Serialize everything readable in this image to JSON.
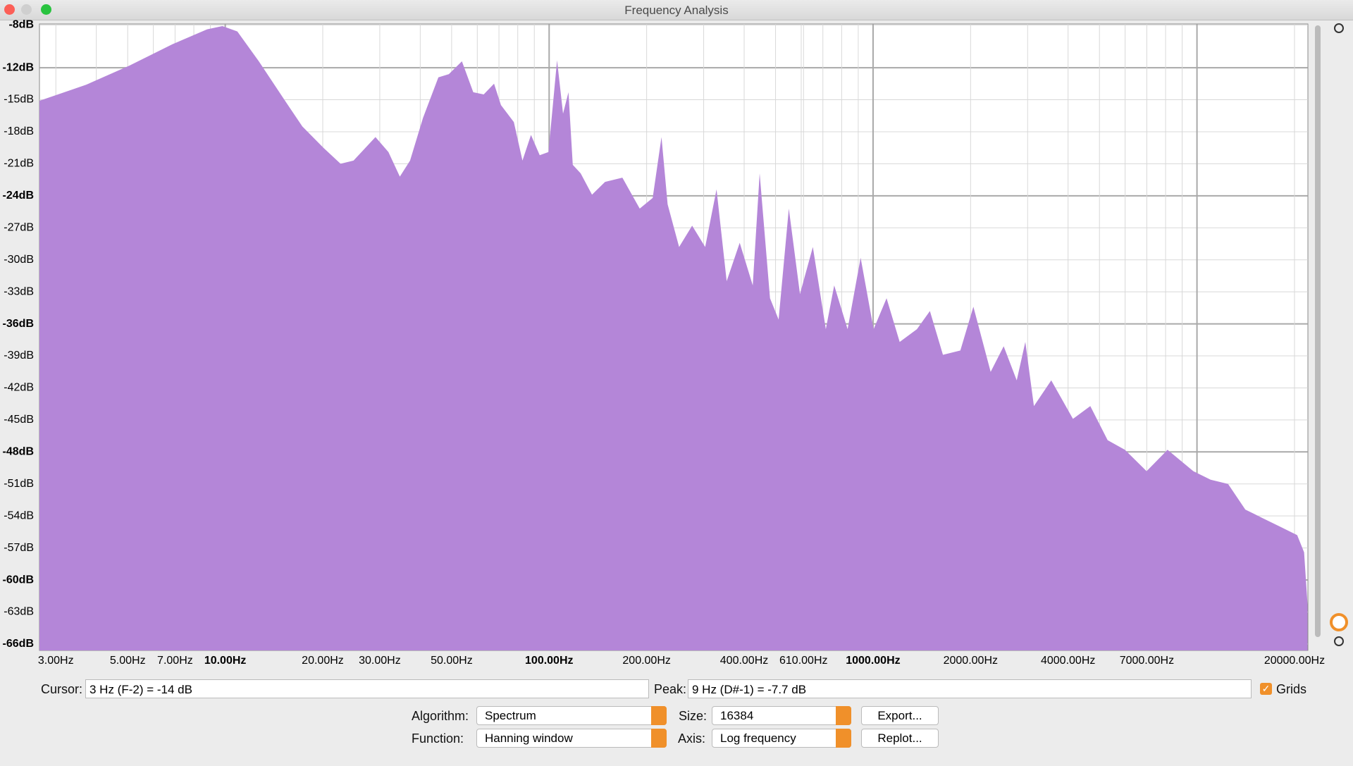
{
  "window": {
    "title": "Frequency Analysis"
  },
  "chart_data": {
    "type": "area",
    "log_x": true,
    "grid": true,
    "color": "#b486d8",
    "x": [
      2.67,
      3.72,
      5.06,
      6.87,
      8.79,
      9.8,
      10.9,
      12.7,
      15.3,
      17.3,
      20.1,
      22.7,
      24.9,
      29.1,
      31.9,
      34.6,
      37.2,
      40.8,
      45.5,
      49,
      53.8,
      58.3,
      62.8,
      67.6,
      71,
      77.8,
      82.7,
      87.9,
      93.5,
      99.5,
      105.8,
      110.4,
      114.7,
      118.3,
      125.1,
      135.6,
      148.8,
      168.3,
      190.4,
      208.8,
      222.2,
      232.1,
      251.9,
      276.4,
      303.2,
      328.6,
      353.3,
      387.6,
      425.2,
      446.6,
      480.6,
      510.9,
      549.5,
      594.6,
      651.7,
      714.8,
      758.7,
      834.6,
      915.3,
      1004,
      1101,
      1208,
      1366,
      1498,
      1643,
      1860,
      2040,
      2307,
      2531,
      2776,
      2951,
      3138,
      3549,
      4142,
      4683,
      5298,
      5990,
      6990,
      8110,
      9745,
      11020,
      12470,
      14100,
      15940,
      18030,
      20390,
      21410,
      21940
    ],
    "values": [
      -15.1,
      -13.6,
      -11.8,
      -9.8,
      -8.4,
      -8.1,
      -8.6,
      -11.4,
      -15.1,
      -17.5,
      -19.5,
      -21,
      -20.7,
      -18.5,
      -19.9,
      -22.2,
      -20.7,
      -16.7,
      -12.9,
      -12.6,
      -11.4,
      -14.3,
      -14.5,
      -13.5,
      -15.5,
      -17.1,
      -20.7,
      -18.3,
      -20.2,
      -19.9,
      -11.3,
      -16.3,
      -14.3,
      -21.1,
      -21.9,
      -23.9,
      -22.7,
      -22.3,
      -25.2,
      -24.2,
      -18.5,
      -24.8,
      -28.8,
      -26.8,
      -28.8,
      -23.4,
      -32,
      -28.4,
      -32.4,
      -21.9,
      -33.6,
      -35.6,
      -25.2,
      -33.2,
      -28.8,
      -36.5,
      -32.4,
      -36.5,
      -29.8,
      -36.5,
      -33.6,
      -37.7,
      -36.5,
      -34.8,
      -38.9,
      -38.5,
      -34.4,
      -40.5,
      -38.1,
      -41.3,
      -37.7,
      -43.7,
      -41.3,
      -44.9,
      -43.7,
      -46.9,
      -47.8,
      -49.8,
      -47.8,
      -49.8,
      -50.6,
      -51,
      -53.4,
      -54.2,
      -55,
      -55.8,
      -57.4,
      -62.3
    ],
    "xlim": [
      2.67,
      22000
    ],
    "ylim": [
      -66.6,
      -7.9
    ],
    "xticks": [
      {
        "value": 3,
        "label": "3.00Hz"
      },
      {
        "value": 5,
        "label": "5.00Hz"
      },
      {
        "value": 7,
        "label": "7.00Hz"
      },
      {
        "value": 10,
        "label": "10.00Hz"
      },
      {
        "value": 20,
        "label": "20.00Hz"
      },
      {
        "value": 30,
        "label": "30.00Hz"
      },
      {
        "value": 50,
        "label": "50.00Hz"
      },
      {
        "value": 100,
        "label": "100.00Hz"
      },
      {
        "value": 200,
        "label": "200.00Hz"
      },
      {
        "value": 400,
        "label": "400.00Hz"
      },
      {
        "value": 610,
        "label": "610.00Hz"
      },
      {
        "value": 1000,
        "label": "1000.00Hz"
      },
      {
        "value": 2000,
        "label": "2000.00Hz"
      },
      {
        "value": 4000,
        "label": "4000.00Hz"
      },
      {
        "value": 7000,
        "label": "7000.00Hz"
      },
      {
        "value": 20000,
        "label": "20000.00Hz"
      }
    ],
    "x_minor_ticks": [
      4,
      6,
      8,
      9,
      40,
      60,
      70,
      80,
      90,
      300,
      500,
      600,
      700,
      800,
      900,
      3000,
      5000,
      6000,
      8000,
      9000,
      10000
    ],
    "yticks": [
      {
        "value": -8,
        "label": "-8dB"
      },
      {
        "value": -12,
        "label": "-12dB"
      },
      {
        "value": -15,
        "label": "-15dB"
      },
      {
        "value": -18,
        "label": "-18dB"
      },
      {
        "value": -21,
        "label": "-21dB"
      },
      {
        "value": -24,
        "label": "-24dB"
      },
      {
        "value": -27,
        "label": "-27dB"
      },
      {
        "value": -30,
        "label": "-30dB"
      },
      {
        "value": -33,
        "label": "-33dB"
      },
      {
        "value": -36,
        "label": "-36dB"
      },
      {
        "value": -39,
        "label": "-39dB"
      },
      {
        "value": -42,
        "label": "-42dB"
      },
      {
        "value": -45,
        "label": "-45dB"
      },
      {
        "value": -48,
        "label": "-48dB"
      },
      {
        "value": -51,
        "label": "-51dB"
      },
      {
        "value": -54,
        "label": "-54dB"
      },
      {
        "value": -57,
        "label": "-57dB"
      },
      {
        "value": -60,
        "label": "-60dB"
      },
      {
        "value": -63,
        "label": "-63dB"
      },
      {
        "value": -66,
        "label": "-66dB"
      }
    ]
  },
  "controls": {
    "cursor_label": "Cursor:",
    "cursor_value": "3 Hz (F-2) = -14 dB",
    "peak_label": "Peak:",
    "peak_value": "9 Hz (D#-1) = -7.7 dB",
    "grids_label": "Grids",
    "algorithm_label": "Algorithm:",
    "algorithm_value": "Spectrum",
    "size_label": "Size:",
    "size_value": "16384",
    "export_button": "Export...",
    "function_label": "Function:",
    "function_value": "Hanning window",
    "axis_label": "Axis:",
    "axis_value": "Log frequency",
    "replot_button": "Replot..."
  }
}
